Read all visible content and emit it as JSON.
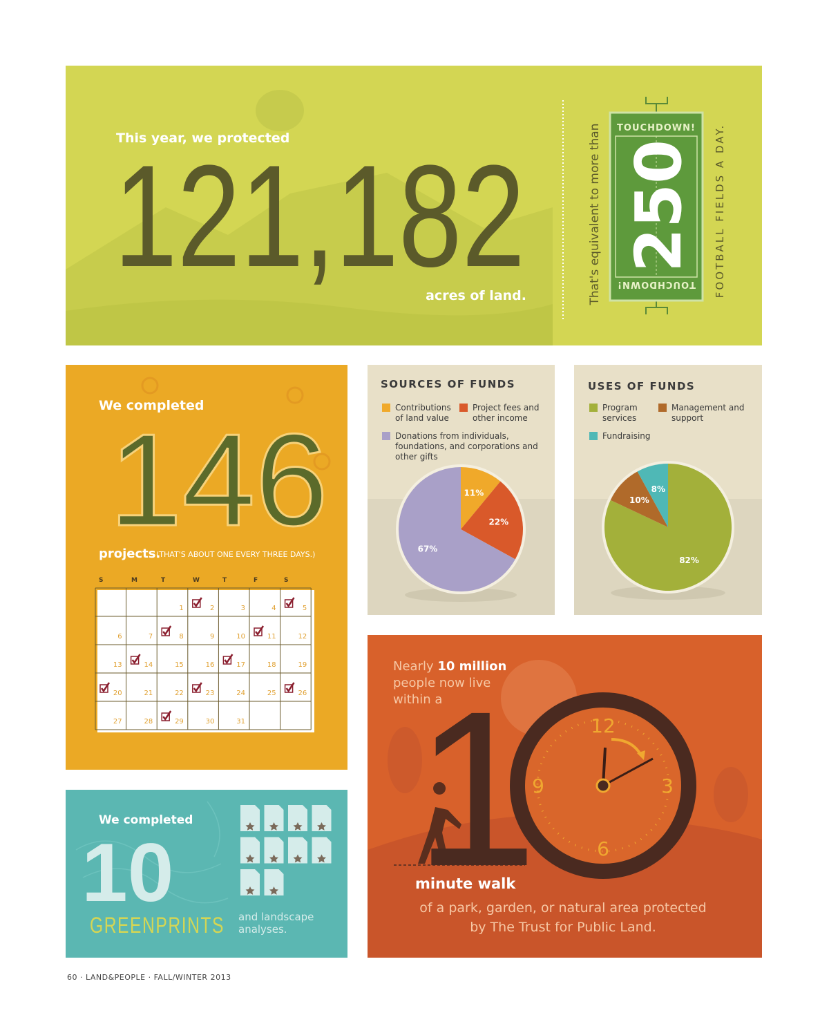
{
  "banner": {
    "lead": "This year, we protected",
    "number": "121,182",
    "unit": "acres of land.",
    "equivalent": "That's equivalent to more than",
    "field_top": "TOUCHDOWN!",
    "field_number": "250",
    "field_bottom": "TOUCHDOWN!",
    "per_day": "FOOTBALL FIELDS A DAY."
  },
  "projects": {
    "lead": "We completed",
    "number": "146",
    "unit": "projects.",
    "note": "(THAT'S ABOUT ONE EVERY THREE DAYS.)",
    "calendar": {
      "weekdays": [
        "S",
        "M",
        "T",
        "W",
        "T",
        "F",
        "S"
      ],
      "days": [
        {
          "day": 1,
          "checked": false
        },
        {
          "day": 2,
          "checked": true
        },
        {
          "day": 3,
          "checked": false
        },
        {
          "day": 4,
          "checked": false
        },
        {
          "day": 5,
          "checked": true
        },
        {
          "day": 6,
          "checked": false
        },
        {
          "day": 7,
          "checked": false
        },
        {
          "day": 8,
          "checked": true
        },
        {
          "day": 9,
          "checked": false
        },
        {
          "day": 10,
          "checked": false
        },
        {
          "day": 11,
          "checked": true
        },
        {
          "day": 12,
          "checked": false
        },
        {
          "day": 13,
          "checked": false
        },
        {
          "day": 14,
          "checked": true
        },
        {
          "day": 15,
          "checked": false
        },
        {
          "day": 16,
          "checked": false
        },
        {
          "day": 17,
          "checked": true
        },
        {
          "day": 18,
          "checked": false
        },
        {
          "day": 19,
          "checked": false
        },
        {
          "day": 20,
          "checked": true
        },
        {
          "day": 21,
          "checked": false
        },
        {
          "day": 22,
          "checked": false
        },
        {
          "day": 23,
          "checked": true
        },
        {
          "day": 24,
          "checked": false
        },
        {
          "day": 25,
          "checked": false
        },
        {
          "day": 26,
          "checked": true
        },
        {
          "day": 27,
          "checked": false
        },
        {
          "day": 28,
          "checked": false
        },
        {
          "day": 29,
          "checked": true
        },
        {
          "day": 30,
          "checked": false
        },
        {
          "day": 31,
          "checked": false
        }
      ]
    }
  },
  "chart_data": [
    {
      "type": "pie",
      "title": "SOURCES OF FUNDS",
      "categories": [
        "Contributions of land value",
        "Project fees and other income",
        "Donations from individuals, foundations, and corporations and other gifts"
      ],
      "values": [
        11,
        22,
        67
      ],
      "value_labels": [
        "11%",
        "22%",
        "67%"
      ],
      "colors": [
        "#f0a92a",
        "#d9592a",
        "#a9a0c8"
      ]
    },
    {
      "type": "pie",
      "title": "USES OF FUNDS",
      "categories": [
        "Program services",
        "Management and support",
        "Fundraising"
      ],
      "values": [
        82,
        10,
        8
      ],
      "value_labels": [
        "82%",
        "10%",
        "8%"
      ],
      "colors": [
        "#a3b03a",
        "#b06a2a",
        "#4fb8b6"
      ]
    }
  ],
  "walk": {
    "intro_start": "Nearly",
    "intro_bold": "10 million",
    "intro_end": "people now live within a",
    "number": "10",
    "clock": [
      "12",
      "3",
      "6",
      "9"
    ],
    "unit": "minute walk",
    "description": "of a park, garden, or natural area protected by The Trust for Public Land."
  },
  "greenprints": {
    "lead": "We completed",
    "number": 10,
    "name": "GREENPRINTS",
    "note": "and landscape analyses."
  },
  "footer": "60 · LAND&PEOPLE · FALL/WINTER 2013"
}
